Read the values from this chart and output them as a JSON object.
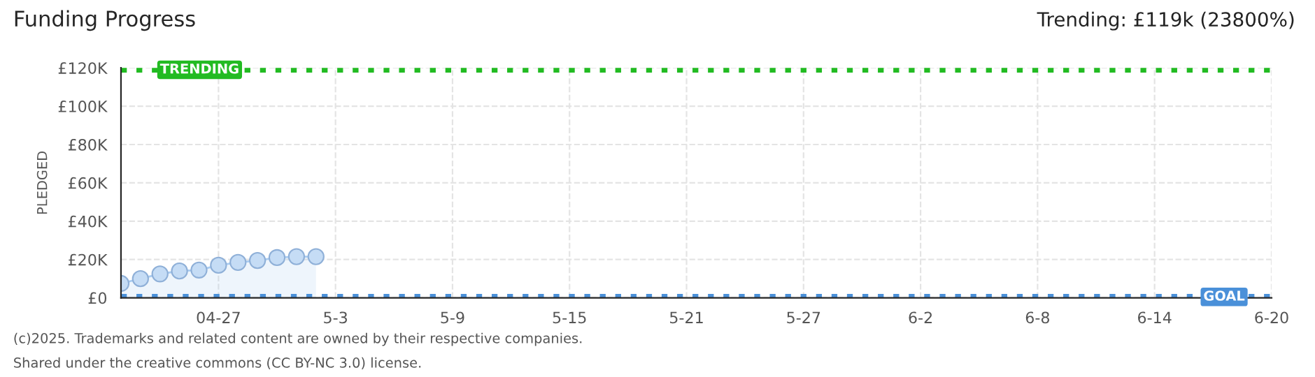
{
  "chart_data": {
    "type": "area",
    "title": "Funding Progress",
    "ylabel": "PLEDGED",
    "x": [
      "2025-04-22",
      "2025-04-23",
      "2025-04-24",
      "2025-04-25",
      "2025-04-26",
      "2025-04-27",
      "2025-04-28",
      "2025-04-29",
      "2025-04-30",
      "2025-05-01",
      "2025-05-02"
    ],
    "series": [
      {
        "color": "#a9cbf0",
        "values": [
          7500,
          10000,
          12500,
          14000,
          14500,
          17000,
          18500,
          19500,
          21000,
          21500,
          21500
        ]
      }
    ],
    "marker": "circle",
    "xlim": [
      "2025-04-22",
      "2025-06-20"
    ],
    "xticks": [
      {
        "value": "2025-04-27",
        "label": "04-27"
      },
      {
        "value": "2025-05-03",
        "label": "5-3"
      },
      {
        "value": "2025-05-09",
        "label": "5-9"
      },
      {
        "value": "2025-05-15",
        "label": "5-15"
      },
      {
        "value": "2025-05-21",
        "label": "5-21"
      },
      {
        "value": "2025-05-27",
        "label": "5-27"
      },
      {
        "value": "2025-06-02",
        "label": "6-2"
      },
      {
        "value": "2025-06-08",
        "label": "6-8"
      },
      {
        "value": "2025-06-14",
        "label": "6-14"
      },
      {
        "value": "2025-06-20",
        "label": "6-20"
      }
    ],
    "ylim": [
      0,
      120000
    ],
    "yticks": [
      {
        "value": 0,
        "label": "£0"
      },
      {
        "value": 20000,
        "label": "£20K"
      },
      {
        "value": 40000,
        "label": "£40K"
      },
      {
        "value": 60000,
        "label": "£60K"
      },
      {
        "value": 80000,
        "label": "£80K"
      },
      {
        "value": 100000,
        "label": "£100K"
      },
      {
        "value": 120000,
        "label": "£120K"
      }
    ],
    "grid": true,
    "ref_lines": [
      {
        "axis": "y",
        "value": 119000,
        "label": "TRENDING",
        "color": "#22bb22",
        "line_style": "dotted"
      },
      {
        "axis": "y",
        "value": 500,
        "label": "GOAL",
        "color": "#4a90d9",
        "line_style": "dotted"
      }
    ],
    "annotations": [
      "Trending: £119k (23800%)",
      "(c)2025. Trademarks and related content are owned by their respective companies.",
      "Shared under the creative commons (CC BY-NC 3.0) license."
    ]
  }
}
